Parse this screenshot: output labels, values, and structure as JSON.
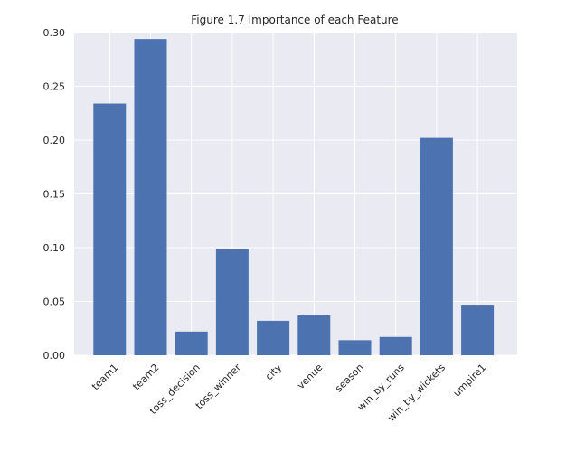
{
  "chart_data": {
    "type": "bar",
    "title": "Figure 1.7 Importance of each Feature",
    "xlabel": "",
    "ylabel": "",
    "categories": [
      "team1",
      "team2",
      "toss_decision",
      "toss_winner",
      "city",
      "venue",
      "season",
      "win_by_runs",
      "win_by_wickets",
      "umpire1"
    ],
    "values": [
      0.234,
      0.294,
      0.022,
      0.099,
      0.032,
      0.037,
      0.014,
      0.017,
      0.202,
      0.047
    ],
    "ylim": [
      0,
      0.3
    ],
    "yticks": [
      "0.00",
      "0.05",
      "0.10",
      "0.15",
      "0.20",
      "0.25",
      "0.30"
    ],
    "grid": true,
    "legend": "none",
    "colors": {
      "bar": "#4c72b0",
      "plot_background": "#eaeaf2",
      "grid": "#ffffff"
    }
  }
}
